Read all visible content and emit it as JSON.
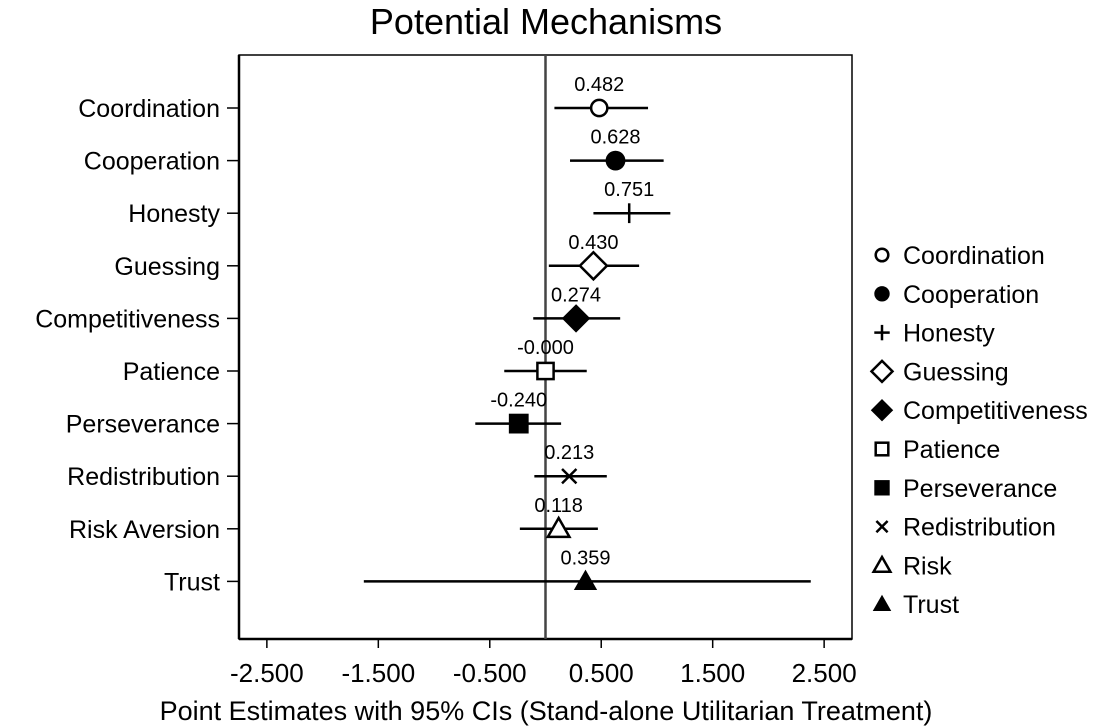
{
  "chart_data": {
    "type": "scatter",
    "title": "Potential Mechanisms",
    "xlabel": "Point Estimates with 95% CIs (Stand-alone Utilitarian Treatment)",
    "ylabel": "",
    "xlim": [
      -2.75,
      2.75
    ],
    "xticks": [
      -2.5,
      -1.5,
      -0.5,
      0.5,
      1.5,
      2.5
    ],
    "xtick_labels": [
      "-2.500",
      "-1.500",
      "-0.500",
      "0.500",
      "1.500",
      "2.500"
    ],
    "reference_line_x": 0,
    "grid": false,
    "legend_position": "right",
    "series": [
      {
        "name": "Coordination",
        "legend_label": "Coordination",
        "marker": "circle-open",
        "estimate": 0.482,
        "label": "0.482",
        "ci": [
          0.08,
          0.92
        ]
      },
      {
        "name": "Cooperation",
        "legend_label": "Cooperation",
        "marker": "circle-filled",
        "estimate": 0.628,
        "label": "0.628",
        "ci": [
          0.22,
          1.06
        ]
      },
      {
        "name": "Honesty",
        "legend_label": "Honesty",
        "marker": "plus",
        "estimate": 0.751,
        "label": "0.751",
        "ci": [
          0.43,
          1.12
        ]
      },
      {
        "name": "Guessing",
        "legend_label": "Guessing",
        "marker": "diamond-open",
        "estimate": 0.43,
        "label": "0.430",
        "ci": [
          0.03,
          0.84
        ]
      },
      {
        "name": "Competitiveness",
        "legend_label": "Competitiveness",
        "marker": "diamond-filled",
        "estimate": 0.274,
        "label": "0.274",
        "ci": [
          -0.11,
          0.67
        ]
      },
      {
        "name": "Patience",
        "legend_label": "Patience",
        "marker": "square-open",
        "estimate": -0.0,
        "label": "-0.000",
        "ci": [
          -0.37,
          0.37
        ]
      },
      {
        "name": "Perseverance",
        "legend_label": "Perseverance",
        "marker": "square-filled",
        "estimate": -0.24,
        "label": "-0.240",
        "ci": [
          -0.63,
          0.14
        ]
      },
      {
        "name": "Redistribution",
        "legend_label": "Redistribution",
        "marker": "x",
        "estimate": 0.213,
        "label": "0.213",
        "ci": [
          -0.1,
          0.55
        ]
      },
      {
        "name": "Risk Aversion",
        "legend_label": "Risk",
        "marker": "triangle-open",
        "estimate": 0.118,
        "label": "0.118",
        "ci": [
          -0.23,
          0.47
        ]
      },
      {
        "name": "Trust",
        "legend_label": "Trust",
        "marker": "triangle-filled",
        "estimate": 0.359,
        "label": "0.359",
        "ci": [
          -1.63,
          2.38
        ]
      }
    ]
  }
}
